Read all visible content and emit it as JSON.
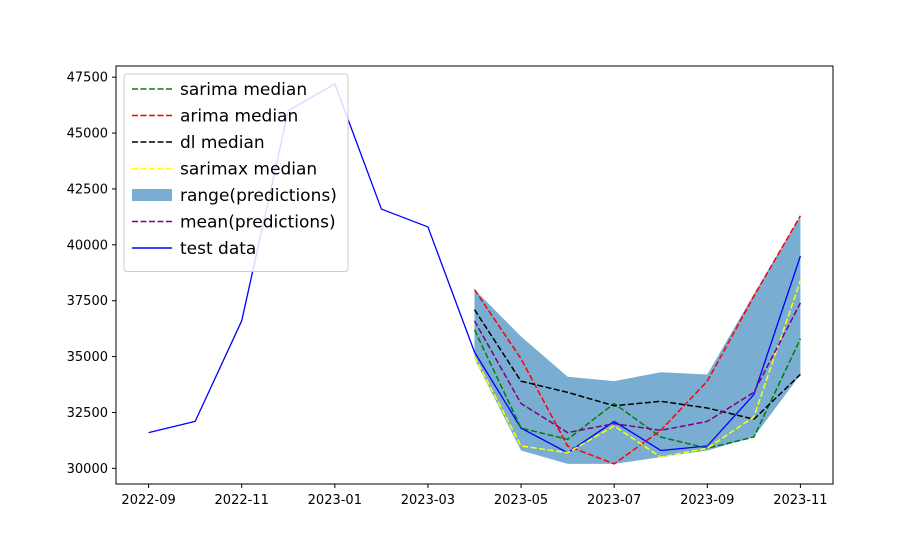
{
  "chart_data": {
    "type": "line",
    "title": "",
    "xlabel": "",
    "ylabel": "",
    "x": [
      "2022-09",
      "2022-10",
      "2022-11",
      "2022-12",
      "2023-01",
      "2023-02",
      "2023-03",
      "2023-04",
      "2023-05",
      "2023-06",
      "2023-07",
      "2023-08",
      "2023-09",
      "2023-10",
      "2023-11"
    ],
    "x_tick_labels": [
      "2022-09",
      "2022-11",
      "2023-01",
      "2023-03",
      "2023-05",
      "2023-07",
      "2023-09",
      "2023-11"
    ],
    "y_tick_labels": [
      "30000",
      "32500",
      "35000",
      "37500",
      "40000",
      "42500",
      "45000",
      "47500"
    ],
    "ylim": [
      29300,
      48000
    ],
    "legend_position": "top-left",
    "grid": false,
    "series": [
      {
        "name": "sarima median",
        "style": "dashed",
        "color": "#008000",
        "x": [
          "2023-04",
          "2023-05",
          "2023-06",
          "2023-07",
          "2023-08",
          "2023-09",
          "2023-10",
          "2023-11"
        ],
        "values": [
          36200,
          31800,
          31300,
          32900,
          31400,
          30900,
          31400,
          35800
        ]
      },
      {
        "name": "arima median",
        "style": "dashed",
        "color": "#ff0000",
        "x": [
          "2023-04",
          "2023-05",
          "2023-06",
          "2023-07",
          "2023-08",
          "2023-09",
          "2023-10",
          "2023-11"
        ],
        "values": [
          38000,
          34900,
          31000,
          30200,
          31700,
          33900,
          37700,
          41300
        ]
      },
      {
        "name": "dl median",
        "style": "dashed",
        "color": "#000000",
        "x": [
          "2023-04",
          "2023-05",
          "2023-06",
          "2023-07",
          "2023-08",
          "2023-09",
          "2023-10",
          "2023-11"
        ],
        "values": [
          37100,
          33900,
          33400,
          32800,
          33000,
          32700,
          32200,
          34200
        ]
      },
      {
        "name": "sarimax median",
        "style": "dashed",
        "color": "#ffff00",
        "x": [
          "2023-04",
          "2023-05",
          "2023-06",
          "2023-07",
          "2023-08",
          "2023-09",
          "2023-10",
          "2023-11"
        ],
        "values": [
          35000,
          31000,
          30700,
          31900,
          30500,
          30900,
          32300,
          38400
        ]
      },
      {
        "name": "range(predictions)",
        "style": "fill",
        "color": "#1f77b4",
        "x": [
          "2023-04",
          "2023-05",
          "2023-06",
          "2023-07",
          "2023-08",
          "2023-09",
          "2023-10",
          "2023-11"
        ],
        "lower": [
          34900,
          30800,
          30200,
          30200,
          30500,
          30800,
          31400,
          34200
        ],
        "upper": [
          38000,
          35900,
          34100,
          33900,
          34300,
          34200,
          37800,
          41300
        ]
      },
      {
        "name": "mean(predictions)",
        "style": "dashed",
        "color": "#800080",
        "x": [
          "2023-04",
          "2023-05",
          "2023-06",
          "2023-07",
          "2023-08",
          "2023-09",
          "2023-10",
          "2023-11"
        ],
        "values": [
          36600,
          32900,
          31600,
          32000,
          31700,
          32100,
          33400,
          37400
        ]
      },
      {
        "name": "test data",
        "style": "solid",
        "color": "#0000ff",
        "x": [
          "2022-09",
          "2022-10",
          "2022-11",
          "2022-12",
          "2023-01",
          "2023-02",
          "2023-03",
          "2023-04",
          "2023-05",
          "2023-06",
          "2023-07",
          "2023-08",
          "2023-09",
          "2023-10",
          "2023-11"
        ],
        "values": [
          31600,
          32100,
          36600,
          46000,
          47200,
          41600,
          40800,
          35200,
          31800,
          30700,
          32100,
          30800,
          31000,
          33300,
          39500
        ]
      }
    ]
  }
}
